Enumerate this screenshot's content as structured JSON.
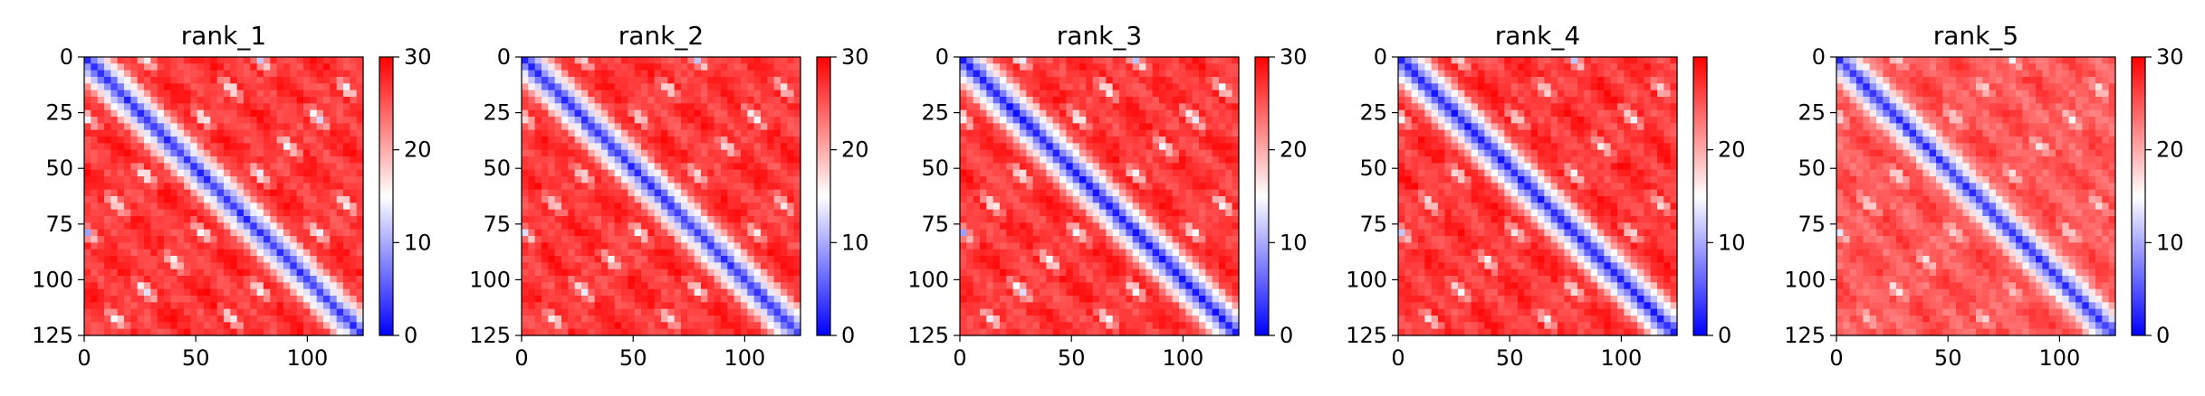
{
  "chart_data": [
    {
      "type": "heatmap",
      "title": "rank_1",
      "x_ticks": [
        0,
        50,
        100
      ],
      "y_ticks": [
        0,
        25,
        50,
        75,
        100,
        125
      ],
      "xlim": [
        0,
        125
      ],
      "ylim": [
        125,
        0
      ],
      "colorbar": {
        "range": [
          0,
          30
        ],
        "ticks": [
          0,
          10,
          20,
          30
        ],
        "colormap": "bwr"
      },
      "diagonal_value": 3,
      "background_value": 27,
      "periodic_blobs": {
        "period": 26,
        "first_offset": 26,
        "rows_offset_shift": 3,
        "value": 9
      }
    },
    {
      "type": "heatmap",
      "title": "rank_2",
      "x_ticks": [
        0,
        50,
        100
      ],
      "y_ticks": [
        0,
        25,
        50,
        75,
        100,
        125
      ],
      "xlim": [
        0,
        125
      ],
      "ylim": [
        125,
        0
      ],
      "colorbar": {
        "range": [
          0,
          30
        ],
        "ticks": [
          0,
          10,
          20,
          30
        ],
        "colormap": "bwr"
      },
      "diagonal_value": 3,
      "background_value": 27,
      "periodic_blobs": {
        "period": 26,
        "first_offset": 26,
        "rows_offset_shift": 3,
        "value": 11
      }
    },
    {
      "type": "heatmap",
      "title": "rank_3",
      "x_ticks": [
        0,
        50,
        100
      ],
      "y_ticks": [
        0,
        25,
        50,
        75,
        100,
        125
      ],
      "xlim": [
        0,
        125
      ],
      "ylim": [
        125,
        0
      ],
      "colorbar": {
        "range": [
          0,
          30
        ],
        "ticks": [
          0,
          10,
          20,
          30
        ],
        "colormap": "bwr"
      },
      "diagonal_value": 2,
      "background_value": 27,
      "periodic_blobs": {
        "period": 26,
        "first_offset": 26,
        "rows_offset_shift": 3,
        "value": 9
      }
    },
    {
      "type": "heatmap",
      "title": "rank_4",
      "x_ticks": [
        0,
        50,
        100
      ],
      "y_ticks": [
        0,
        25,
        50,
        75,
        100,
        125
      ],
      "xlim": [
        0,
        125
      ],
      "ylim": [
        125,
        0
      ],
      "colorbar": {
        "range": [
          0,
          30
        ],
        "ticks": [
          0,
          10,
          20
        ],
        "colormap": "bwr"
      },
      "diagonal_value": 2,
      "background_value": 27,
      "periodic_blobs": {
        "period": 26,
        "first_offset": 26,
        "rows_offset_shift": 3,
        "value": 11
      }
    },
    {
      "type": "heatmap",
      "title": "rank_5",
      "x_ticks": [
        0,
        50,
        100
      ],
      "y_ticks": [
        0,
        25,
        50,
        75,
        100,
        125
      ],
      "xlim": [
        0,
        125
      ],
      "ylim": [
        125,
        0
      ],
      "colorbar": {
        "range": [
          0,
          30
        ],
        "ticks": [
          0,
          10,
          20,
          30
        ],
        "colormap": "bwr"
      },
      "diagonal_value": 3,
      "background_value": 25,
      "periodic_blobs": {
        "period": 26,
        "first_offset": 26,
        "rows_offset_shift": 3,
        "value": 13
      }
    }
  ]
}
